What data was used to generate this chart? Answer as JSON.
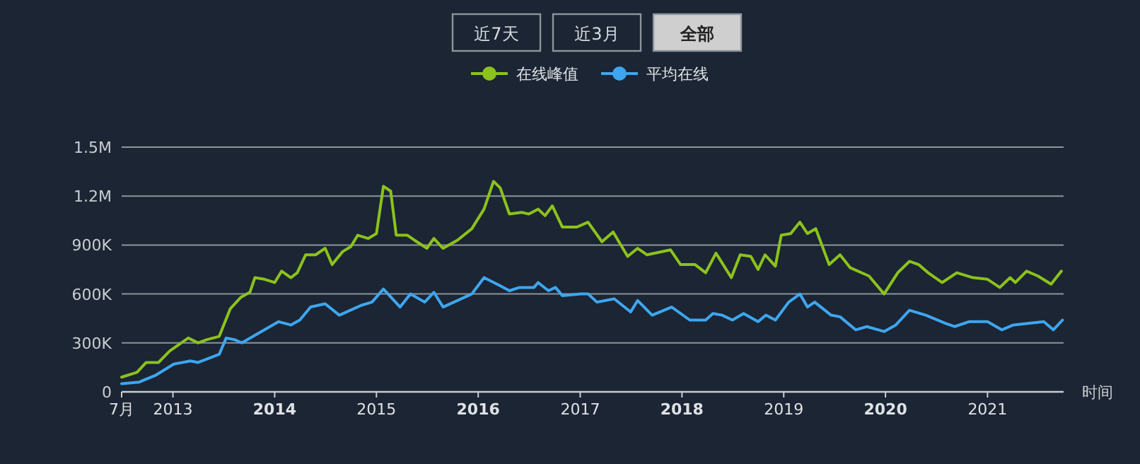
{
  "chart_data": {
    "type": "line",
    "xlabel": "时间",
    "annotations": [
      "近7天",
      "近3月",
      "全部"
    ],
    "xlim": [
      "2012-07-01",
      "2021-10-01"
    ],
    "xticks": [
      {
        "value": "2012-07",
        "label": "7月"
      },
      "2013",
      "2014",
      "2015",
      "2016",
      "2017",
      "2018",
      "2019",
      "2020",
      "2021"
    ],
    "ylim": [
      0,
      1500000
    ],
    "yticks": [
      0,
      {
        "value": 300000,
        "label": "300K"
      },
      {
        "value": 600000,
        "label": "600K"
      },
      {
        "value": 900000,
        "label": "900K"
      },
      {
        "value": 1200000,
        "label": "1.2M"
      },
      {
        "value": 1500000,
        "label": "1.5M"
      }
    ],
    "grid": "y",
    "legend": "top",
    "marker": "none",
    "line_style": "solid",
    "series": [
      {
        "name": "在线峰值",
        "color": "#8cc21c",
        "x": [
          "2012-07-01",
          "2012-08-25",
          "2012-09-27",
          "2012-11-10",
          "2012-12-20",
          "2013-02-25",
          "2013-04-01",
          "2013-05-03",
          "2013-06-16",
          "2013-07-26",
          "2013-09-02",
          "2013-10-04",
          "2013-10-22",
          "2013-11-25",
          "2014-01-01",
          "2014-01-26",
          "2014-02-28",
          "2014-03-23",
          "2014-04-22",
          "2014-05-28",
          "2014-07-01",
          "2014-07-26",
          "2014-09-02",
          "2014-10-01",
          "2014-10-26",
          "2014-12-02",
          "2015-01-01",
          "2015-01-26",
          "2015-02-21",
          "2015-03-13",
          "2015-04-22",
          "2015-05-17",
          "2015-07-01",
          "2015-07-26",
          "2015-08-28",
          "2015-10-19",
          "2015-12-09",
          "2016-01-22",
          "2016-02-25",
          "2016-03-20",
          "2016-04-22",
          "2016-06-05",
          "2016-07-01",
          "2016-08-03",
          "2016-08-28",
          "2016-09-23",
          "2016-10-29",
          "2016-12-20",
          "2017-01-29",
          "2017-03-20",
          "2017-04-29",
          "2017-06-20",
          "2017-07-26",
          "2017-08-28",
          "2017-11-21",
          "2017-12-27",
          "2018-02-17",
          "2018-03-27",
          "2018-05-03",
          "2018-06-27",
          "2018-07-29",
          "2018-09-05",
          "2018-10-01",
          "2018-10-26",
          "2018-12-02",
          "2018-12-23",
          "2019-01-26",
          "2019-02-28",
          "2019-03-27",
          "2019-04-26",
          "2019-06-13",
          "2019-07-22",
          "2019-08-28",
          "2019-11-03",
          "2019-12-27",
          "2020-02-14",
          "2020-03-27",
          "2020-04-29",
          "2020-06-02",
          "2020-07-22",
          "2020-09-13",
          "2020-11-10",
          "2021-01-01",
          "2021-02-14",
          "2021-03-23",
          "2021-04-11",
          "2021-05-21",
          "2021-07-01",
          "2021-08-17",
          "2021-09-23"
        ],
        "values": [
          90000,
          120000,
          180000,
          180000,
          250000,
          330000,
          300000,
          320000,
          340000,
          510000,
          580000,
          610000,
          700000,
          690000,
          670000,
          740000,
          700000,
          730000,
          840000,
          840000,
          880000,
          780000,
          860000,
          890000,
          960000,
          940000,
          970000,
          1260000,
          1230000,
          960000,
          960000,
          930000,
          880000,
          940000,
          880000,
          930000,
          1000000,
          1120000,
          1290000,
          1250000,
          1090000,
          1100000,
          1090000,
          1120000,
          1080000,
          1140000,
          1010000,
          1010000,
          1040000,
          920000,
          980000,
          830000,
          880000,
          840000,
          870000,
          780000,
          780000,
          730000,
          850000,
          700000,
          840000,
          830000,
          750000,
          840000,
          770000,
          960000,
          970000,
          1040000,
          970000,
          1000000,
          780000,
          840000,
          760000,
          710000,
          600000,
          730000,
          800000,
          780000,
          730000,
          670000,
          730000,
          700000,
          690000,
          640000,
          700000,
          670000,
          740000,
          710000,
          660000,
          740000
        ]
      },
      {
        "name": "平均在线",
        "color": "#3ea6f0",
        "x": [
          "2012-07-01",
          "2012-09-02",
          "2012-10-29",
          "2013-01-04",
          "2013-03-05",
          "2013-04-01",
          "2013-06-16",
          "2013-07-11",
          "2013-08-10",
          "2013-09-05",
          "2014-01-15",
          "2014-02-28",
          "2014-04-01",
          "2014-05-10",
          "2014-07-01",
          "2014-08-21",
          "2014-11-07",
          "2014-12-16",
          "2015-01-26",
          "2015-03-27",
          "2015-05-03",
          "2015-06-23",
          "2015-07-26",
          "2015-08-28",
          "2015-12-09",
          "2016-01-22",
          "2016-03-20",
          "2016-04-22",
          "2016-05-28",
          "2016-07-19",
          "2016-08-03",
          "2016-09-09",
          "2016-10-04",
          "2016-10-29",
          "2017-01-04",
          "2017-01-29",
          "2017-03-02",
          "2017-05-03",
          "2017-07-01",
          "2017-07-26",
          "2017-09-16",
          "2017-11-25",
          "2018-01-29",
          "2018-03-27",
          "2018-04-22",
          "2018-05-25",
          "2018-07-01",
          "2018-08-10",
          "2018-10-01",
          "2018-10-29",
          "2018-12-02",
          "2019-01-19",
          "2019-02-28",
          "2019-03-27",
          "2019-04-22",
          "2019-06-20",
          "2019-07-22",
          "2019-09-16",
          "2019-10-26",
          "2019-12-27",
          "2020-02-07",
          "2020-03-27",
          "2020-05-25",
          "2020-08-03",
          "2020-09-05",
          "2020-10-26",
          "2021-01-01",
          "2021-02-21",
          "2021-04-04",
          "2021-07-22",
          "2021-08-25",
          "2021-09-27"
        ],
        "values": [
          50000,
          60000,
          100000,
          170000,
          190000,
          180000,
          230000,
          330000,
          320000,
          300000,
          430000,
          410000,
          440000,
          520000,
          540000,
          470000,
          530000,
          550000,
          630000,
          520000,
          600000,
          550000,
          610000,
          520000,
          600000,
          700000,
          650000,
          620000,
          640000,
          640000,
          670000,
          620000,
          640000,
          590000,
          600000,
          600000,
          550000,
          570000,
          490000,
          560000,
          470000,
          520000,
          440000,
          440000,
          480000,
          470000,
          440000,
          480000,
          430000,
          470000,
          440000,
          550000,
          600000,
          520000,
          550000,
          470000,
          460000,
          380000,
          400000,
          370000,
          410000,
          500000,
          470000,
          420000,
          400000,
          430000,
          430000,
          380000,
          410000,
          430000,
          380000,
          440000
        ]
      }
    ]
  }
}
